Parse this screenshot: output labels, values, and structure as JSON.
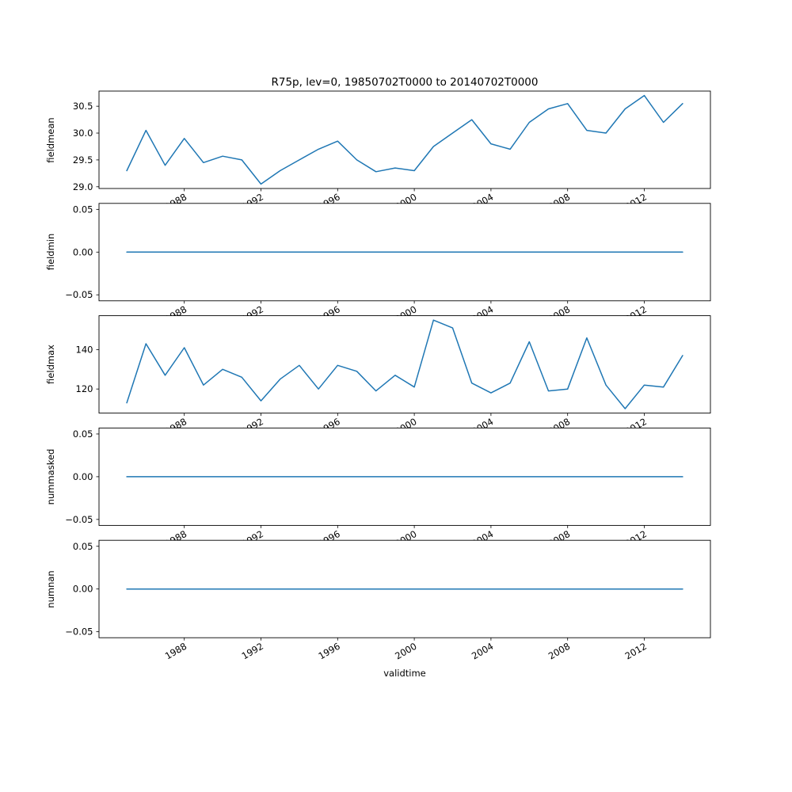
{
  "title": "R75p, lev=0, 19850702T0000 to 20140702T0000",
  "xlabel": "validtime",
  "accent_color": "#1f77b4",
  "chart_data": [
    {
      "type": "line",
      "name": "fieldmean",
      "ylabel": "fieldmean",
      "x": [
        1985,
        1986,
        1987,
        1988,
        1989,
        1990,
        1991,
        1992,
        1993,
        1994,
        1995,
        1996,
        1997,
        1998,
        1999,
        2000,
        2001,
        2002,
        2003,
        2004,
        2005,
        2006,
        2007,
        2008,
        2009,
        2010,
        2011,
        2012,
        2013,
        2014
      ],
      "values": [
        29.3,
        30.05,
        29.4,
        29.9,
        29.45,
        29.57,
        29.5,
        29.05,
        29.3,
        29.5,
        29.7,
        29.85,
        29.5,
        29.28,
        29.35,
        29.3,
        29.75,
        30.0,
        30.25,
        29.8,
        29.7,
        30.2,
        30.45,
        30.55,
        30.05,
        30.0,
        30.45,
        30.7,
        30.2,
        30.55
      ],
      "xlim": [
        1983.55,
        2015.45
      ],
      "ylim": [
        28.9675,
        30.7825
      ],
      "yticks": [
        29.0,
        29.5,
        30.0,
        30.5
      ],
      "ytick_labels": [
        "29.0",
        "29.5",
        "30.0",
        "30.5"
      ],
      "xticks": [
        1988,
        1992,
        1996,
        2000,
        2004,
        2008,
        2012
      ],
      "xtick_labels": [
        "1988",
        "1992",
        "1996",
        "2000",
        "2004",
        "2008",
        "2012"
      ],
      "grid": false
    },
    {
      "type": "line",
      "name": "fieldmin",
      "ylabel": "fieldmin",
      "x": [
        1985,
        1986,
        1987,
        1988,
        1989,
        1990,
        1991,
        1992,
        1993,
        1994,
        1995,
        1996,
        1997,
        1998,
        1999,
        2000,
        2001,
        2002,
        2003,
        2004,
        2005,
        2006,
        2007,
        2008,
        2009,
        2010,
        2011,
        2012,
        2013,
        2014
      ],
      "values": [
        0,
        0,
        0,
        0,
        0,
        0,
        0,
        0,
        0,
        0,
        0,
        0,
        0,
        0,
        0,
        0,
        0,
        0,
        0,
        0,
        0,
        0,
        0,
        0,
        0,
        0,
        0,
        0,
        0,
        0
      ],
      "xlim": [
        1983.55,
        2015.45
      ],
      "ylim": [
        -0.057,
        0.057
      ],
      "yticks": [
        -0.05,
        0.0,
        0.05
      ],
      "ytick_labels": [
        "−0.05",
        "0.00",
        "0.05"
      ],
      "xticks": [
        1988,
        1992,
        1996,
        2000,
        2004,
        2008,
        2012
      ],
      "xtick_labels": [
        "1988",
        "1992",
        "1996",
        "2000",
        "2004",
        "2008",
        "2012"
      ],
      "grid": false
    },
    {
      "type": "line",
      "name": "fieldmax",
      "ylabel": "fieldmax",
      "x": [
        1985,
        1986,
        1987,
        1988,
        1989,
        1990,
        1991,
        1992,
        1993,
        1994,
        1995,
        1996,
        1997,
        1998,
        1999,
        2000,
        2001,
        2002,
        2003,
        2004,
        2005,
        2006,
        2007,
        2008,
        2009,
        2010,
        2011,
        2012,
        2013,
        2014
      ],
      "values": [
        113,
        143,
        127,
        141,
        122,
        130,
        126,
        114,
        125,
        132,
        120,
        132,
        129,
        119,
        127,
        121,
        155,
        151,
        123,
        118,
        123,
        144,
        119,
        120,
        146,
        122,
        110,
        122,
        121,
        137
      ],
      "xlim": [
        1983.55,
        2015.45
      ],
      "ylim": [
        107.75,
        157.25
      ],
      "yticks": [
        120,
        140
      ],
      "ytick_labels": [
        "120",
        "140"
      ],
      "xticks": [
        1988,
        1992,
        1996,
        2000,
        2004,
        2008,
        2012
      ],
      "xtick_labels": [
        "1988",
        "1992",
        "1996",
        "2000",
        "2004",
        "2008",
        "2012"
      ],
      "grid": false
    },
    {
      "type": "line",
      "name": "nummasked",
      "ylabel": "nummasked",
      "x": [
        1985,
        1986,
        1987,
        1988,
        1989,
        1990,
        1991,
        1992,
        1993,
        1994,
        1995,
        1996,
        1997,
        1998,
        1999,
        2000,
        2001,
        2002,
        2003,
        2004,
        2005,
        2006,
        2007,
        2008,
        2009,
        2010,
        2011,
        2012,
        2013,
        2014
      ],
      "values": [
        0,
        0,
        0,
        0,
        0,
        0,
        0,
        0,
        0,
        0,
        0,
        0,
        0,
        0,
        0,
        0,
        0,
        0,
        0,
        0,
        0,
        0,
        0,
        0,
        0,
        0,
        0,
        0,
        0,
        0
      ],
      "xlim": [
        1983.55,
        2015.45
      ],
      "ylim": [
        -0.057,
        0.057
      ],
      "yticks": [
        -0.05,
        0.0,
        0.05
      ],
      "ytick_labels": [
        "−0.05",
        "0.00",
        "0.05"
      ],
      "xticks": [
        1988,
        1992,
        1996,
        2000,
        2004,
        2008,
        2012
      ],
      "xtick_labels": [
        "1988",
        "1992",
        "1996",
        "2000",
        "2004",
        "2008",
        "2012"
      ],
      "grid": false
    },
    {
      "type": "line",
      "name": "numnan",
      "ylabel": "numnan",
      "x": [
        1985,
        1986,
        1987,
        1988,
        1989,
        1990,
        1991,
        1992,
        1993,
        1994,
        1995,
        1996,
        1997,
        1998,
        1999,
        2000,
        2001,
        2002,
        2003,
        2004,
        2005,
        2006,
        2007,
        2008,
        2009,
        2010,
        2011,
        2012,
        2013,
        2014
      ],
      "values": [
        0,
        0,
        0,
        0,
        0,
        0,
        0,
        0,
        0,
        0,
        0,
        0,
        0,
        0,
        0,
        0,
        0,
        0,
        0,
        0,
        0,
        0,
        0,
        0,
        0,
        0,
        0,
        0,
        0,
        0
      ],
      "xlim": [
        1983.55,
        2015.45
      ],
      "ylim": [
        -0.057,
        0.057
      ],
      "yticks": [
        -0.05,
        0.0,
        0.05
      ],
      "ytick_labels": [
        "−0.05",
        "0.00",
        "0.05"
      ],
      "xticks": [
        1988,
        1992,
        1996,
        2000,
        2004,
        2008,
        2012
      ],
      "xtick_labels": [
        "1988",
        "1992",
        "1996",
        "2000",
        "2004",
        "2008",
        "2012"
      ],
      "grid": false
    }
  ]
}
